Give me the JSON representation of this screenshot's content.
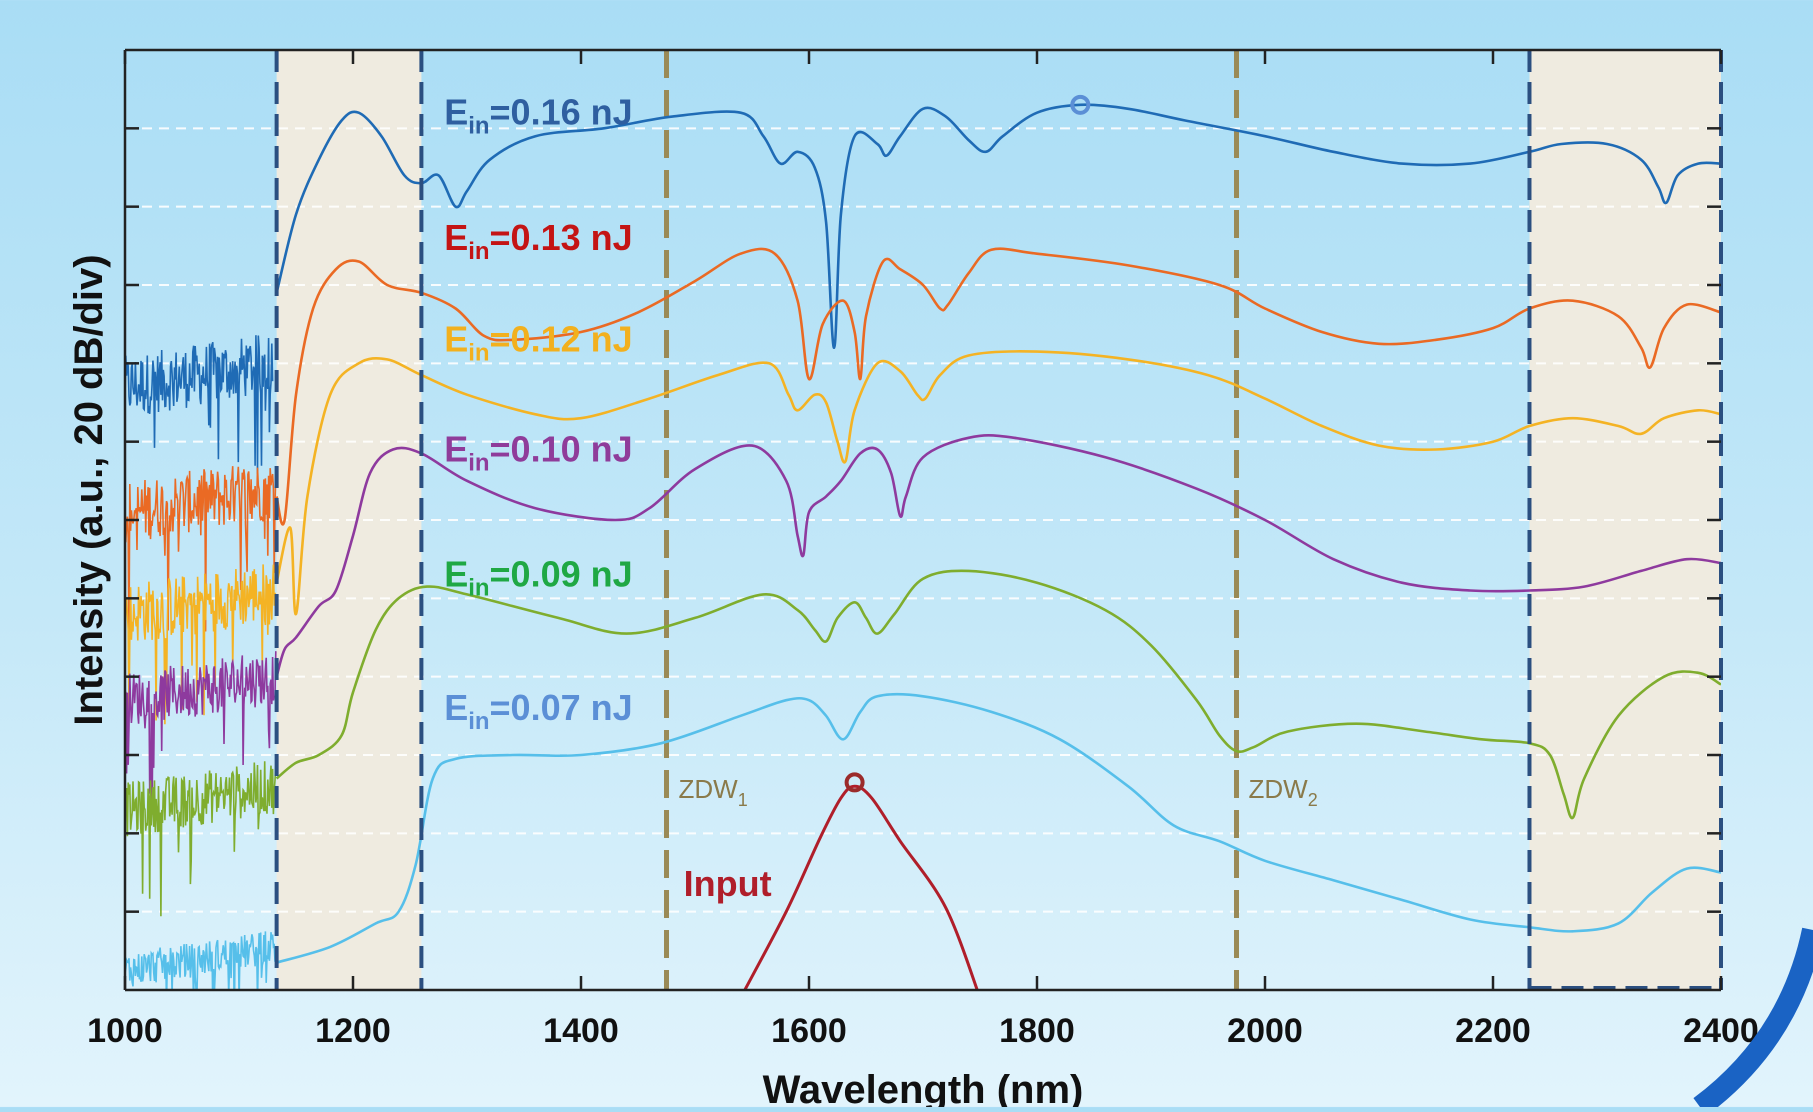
{
  "chart_data": {
    "type": "line",
    "xlabel": "Wavelength (nm)",
    "ylabel": "Intensity (a.u., 20 dB/div)",
    "xlim": [
      1000,
      2400
    ],
    "xticks": [
      1000,
      1200,
      1400,
      1600,
      1800,
      2000,
      2200,
      2400
    ],
    "ylim": [
      0,
      12
    ],
    "grid": true,
    "shaded_regions": [
      [
        1133,
        1260
      ],
      [
        2232,
        2400
      ]
    ],
    "vlines": [
      {
        "x": 1475,
        "label": "ZDW",
        "sub": "1",
        "color": "#9a8a56"
      },
      {
        "x": 1975,
        "label": "ZDW",
        "sub": "2",
        "color": "#9a8a56"
      }
    ],
    "series": [
      {
        "name": "E",
        "sub": "in",
        "suffix": "=0.16 nJ",
        "color": "#1f6bb5",
        "label_color": "#2f5fa0",
        "label_x": 1280,
        "label_y": 11.05,
        "noise": {
          "x0": 1000,
          "x1": 1130,
          "y": 7.7,
          "amp": 0.8
        },
        "marker": {
          "x": 1838,
          "y": 11.3,
          "color": "#5b8fd6"
        },
        "points": [
          [
            1133,
            8.9
          ],
          [
            1150,
            9.9
          ],
          [
            1170,
            10.6
          ],
          [
            1190,
            11.1
          ],
          [
            1205,
            11.2
          ],
          [
            1225,
            10.9
          ],
          [
            1245,
            10.4
          ],
          [
            1260,
            10.3
          ],
          [
            1275,
            10.4
          ],
          [
            1290,
            10.0
          ],
          [
            1300,
            10.2
          ],
          [
            1320,
            10.6
          ],
          [
            1360,
            10.9
          ],
          [
            1420,
            11.0
          ],
          [
            1480,
            11.15
          ],
          [
            1540,
            11.2
          ],
          [
            1560,
            10.9
          ],
          [
            1575,
            10.55
          ],
          [
            1590,
            10.7
          ],
          [
            1605,
            10.5
          ],
          [
            1615,
            9.8
          ],
          [
            1622,
            8.2
          ],
          [
            1628,
            9.9
          ],
          [
            1640,
            10.9
          ],
          [
            1660,
            10.8
          ],
          [
            1668,
            10.65
          ],
          [
            1680,
            10.9
          ],
          [
            1700,
            11.25
          ],
          [
            1720,
            11.15
          ],
          [
            1740,
            10.85
          ],
          [
            1755,
            10.7
          ],
          [
            1770,
            10.9
          ],
          [
            1800,
            11.2
          ],
          [
            1838,
            11.3
          ],
          [
            1880,
            11.25
          ],
          [
            1930,
            11.1
          ],
          [
            2000,
            10.9
          ],
          [
            2060,
            10.7
          ],
          [
            2120,
            10.55
          ],
          [
            2180,
            10.55
          ],
          [
            2232,
            10.7
          ],
          [
            2260,
            10.8
          ],
          [
            2300,
            10.8
          ],
          [
            2330,
            10.6
          ],
          [
            2345,
            10.25
          ],
          [
            2352,
            10.05
          ],
          [
            2362,
            10.4
          ],
          [
            2380,
            10.55
          ],
          [
            2400,
            10.55
          ]
        ]
      },
      {
        "name": "E",
        "sub": "in",
        "suffix": "=0.13 nJ",
        "color": "#ea6a24",
        "label_color": "#c41414",
        "label_x": 1280,
        "label_y": 9.45,
        "noise": {
          "x0": 1000,
          "x1": 1133,
          "y": 6.1,
          "amp": 0.8
        },
        "points": [
          [
            1133,
            6.3
          ],
          [
            1140,
            6.0
          ],
          [
            1150,
            7.6
          ],
          [
            1165,
            8.7
          ],
          [
            1185,
            9.2
          ],
          [
            1205,
            9.3
          ],
          [
            1230,
            9.0
          ],
          [
            1260,
            8.9
          ],
          [
            1290,
            8.7
          ],
          [
            1315,
            8.35
          ],
          [
            1340,
            8.3
          ],
          [
            1400,
            8.4
          ],
          [
            1450,
            8.65
          ],
          [
            1500,
            9.05
          ],
          [
            1540,
            9.4
          ],
          [
            1570,
            9.4
          ],
          [
            1590,
            8.8
          ],
          [
            1600,
            7.8
          ],
          [
            1612,
            8.5
          ],
          [
            1630,
            8.8
          ],
          [
            1640,
            8.4
          ],
          [
            1645,
            7.8
          ],
          [
            1650,
            8.6
          ],
          [
            1665,
            9.3
          ],
          [
            1680,
            9.2
          ],
          [
            1700,
            9.0
          ],
          [
            1715,
            8.7
          ],
          [
            1722,
            8.75
          ],
          [
            1740,
            9.15
          ],
          [
            1760,
            9.45
          ],
          [
            1800,
            9.4
          ],
          [
            1880,
            9.25
          ],
          [
            1960,
            9.0
          ],
          [
            2000,
            8.7
          ],
          [
            2050,
            8.4
          ],
          [
            2100,
            8.25
          ],
          [
            2150,
            8.3
          ],
          [
            2200,
            8.45
          ],
          [
            2232,
            8.7
          ],
          [
            2270,
            8.8
          ],
          [
            2310,
            8.6
          ],
          [
            2330,
            8.2
          ],
          [
            2338,
            7.95
          ],
          [
            2350,
            8.45
          ],
          [
            2370,
            8.75
          ],
          [
            2400,
            8.65
          ]
        ]
      },
      {
        "name": "E",
        "sub": "in",
        "suffix": "=0.12 nJ",
        "color": "#f4b324",
        "label_color": "#f2b01e",
        "label_x": 1280,
        "label_y": 8.15,
        "noise": {
          "x0": 1000,
          "x1": 1133,
          "y": 4.8,
          "amp": 0.8
        },
        "points": [
          [
            1133,
            5.2
          ],
          [
            1145,
            5.9
          ],
          [
            1150,
            4.8
          ],
          [
            1160,
            6.3
          ],
          [
            1180,
            7.6
          ],
          [
            1205,
            8.0
          ],
          [
            1230,
            8.05
          ],
          [
            1260,
            7.85
          ],
          [
            1300,
            7.6
          ],
          [
            1360,
            7.35
          ],
          [
            1400,
            7.3
          ],
          [
            1460,
            7.55
          ],
          [
            1520,
            7.85
          ],
          [
            1565,
            8.0
          ],
          [
            1582,
            7.6
          ],
          [
            1590,
            7.4
          ],
          [
            1605,
            7.6
          ],
          [
            1615,
            7.5
          ],
          [
            1625,
            7.0
          ],
          [
            1632,
            6.75
          ],
          [
            1640,
            7.4
          ],
          [
            1660,
            8.0
          ],
          [
            1680,
            7.9
          ],
          [
            1695,
            7.6
          ],
          [
            1702,
            7.55
          ],
          [
            1715,
            7.85
          ],
          [
            1740,
            8.1
          ],
          [
            1800,
            8.15
          ],
          [
            1880,
            8.05
          ],
          [
            1950,
            7.85
          ],
          [
            2000,
            7.55
          ],
          [
            2050,
            7.2
          ],
          [
            2100,
            6.95
          ],
          [
            2150,
            6.9
          ],
          [
            2200,
            7.0
          ],
          [
            2232,
            7.2
          ],
          [
            2270,
            7.3
          ],
          [
            2310,
            7.2
          ],
          [
            2330,
            7.1
          ],
          [
            2350,
            7.3
          ],
          [
            2380,
            7.4
          ],
          [
            2400,
            7.35
          ]
        ]
      },
      {
        "name": "E",
        "sub": "in",
        "suffix": "=0.10 nJ",
        "color": "#8e3a9e",
        "label_color": "#8f3c9a",
        "label_x": 1280,
        "label_y": 6.75,
        "noise": {
          "x0": 1000,
          "x1": 1133,
          "y": 3.7,
          "amp": 0.7
        },
        "points": [
          [
            1133,
            4.0
          ],
          [
            1140,
            4.35
          ],
          [
            1150,
            4.5
          ],
          [
            1170,
            4.9
          ],
          [
            1185,
            5.1
          ],
          [
            1200,
            5.8
          ],
          [
            1215,
            6.6
          ],
          [
            1235,
            6.9
          ],
          [
            1260,
            6.85
          ],
          [
            1300,
            6.5
          ],
          [
            1360,
            6.15
          ],
          [
            1430,
            6.0
          ],
          [
            1460,
            6.15
          ],
          [
            1500,
            6.65
          ],
          [
            1550,
            6.95
          ],
          [
            1580,
            6.5
          ],
          [
            1590,
            5.8
          ],
          [
            1595,
            5.55
          ],
          [
            1600,
            6.1
          ],
          [
            1615,
            6.3
          ],
          [
            1628,
            6.5
          ],
          [
            1645,
            6.85
          ],
          [
            1660,
            6.9
          ],
          [
            1672,
            6.6
          ],
          [
            1680,
            6.05
          ],
          [
            1685,
            6.3
          ],
          [
            1700,
            6.8
          ],
          [
            1740,
            7.05
          ],
          [
            1780,
            7.05
          ],
          [
            1860,
            6.8
          ],
          [
            1940,
            6.4
          ],
          [
            2000,
            6.0
          ],
          [
            2060,
            5.5
          ],
          [
            2120,
            5.2
          ],
          [
            2180,
            5.1
          ],
          [
            2232,
            5.1
          ],
          [
            2280,
            5.15
          ],
          [
            2330,
            5.35
          ],
          [
            2370,
            5.5
          ],
          [
            2400,
            5.45
          ]
        ]
      },
      {
        "name": "E",
        "sub": "in",
        "suffix": "=0.09 nJ",
        "color": "#7fad2e",
        "label_color": "#1fa844",
        "label_x": 1280,
        "label_y": 5.15,
        "noise": {
          "x0": 1000,
          "x1": 1133,
          "y": 2.3,
          "amp": 0.7
        },
        "points": [
          [
            1133,
            2.7
          ],
          [
            1150,
            2.9
          ],
          [
            1170,
            3.0
          ],
          [
            1190,
            3.25
          ],
          [
            1200,
            3.8
          ],
          [
            1220,
            4.6
          ],
          [
            1240,
            5.0
          ],
          [
            1265,
            5.15
          ],
          [
            1300,
            5.05
          ],
          [
            1380,
            4.75
          ],
          [
            1440,
            4.55
          ],
          [
            1500,
            4.75
          ],
          [
            1560,
            5.05
          ],
          [
            1590,
            4.85
          ],
          [
            1605,
            4.6
          ],
          [
            1615,
            4.45
          ],
          [
            1625,
            4.75
          ],
          [
            1640,
            4.95
          ],
          [
            1650,
            4.75
          ],
          [
            1660,
            4.55
          ],
          [
            1675,
            4.8
          ],
          [
            1700,
            5.25
          ],
          [
            1740,
            5.35
          ],
          [
            1800,
            5.2
          ],
          [
            1860,
            4.85
          ],
          [
            1900,
            4.4
          ],
          [
            1940,
            3.7
          ],
          [
            1960,
            3.25
          ],
          [
            1975,
            3.05
          ],
          [
            1990,
            3.1
          ],
          [
            2020,
            3.3
          ],
          [
            2080,
            3.4
          ],
          [
            2140,
            3.3
          ],
          [
            2190,
            3.2
          ],
          [
            2232,
            3.15
          ],
          [
            2250,
            3.0
          ],
          [
            2262,
            2.5
          ],
          [
            2270,
            2.2
          ],
          [
            2280,
            2.7
          ],
          [
            2310,
            3.5
          ],
          [
            2350,
            4.0
          ],
          [
            2380,
            4.05
          ],
          [
            2400,
            3.9
          ]
        ]
      },
      {
        "name": "E",
        "sub": "in",
        "suffix": "=0.07 nJ",
        "color": "#56bfea",
        "label_color": "#5b8fd6",
        "label_x": 1280,
        "label_y": 3.45,
        "noise": {
          "x0": 1000,
          "x1": 1133,
          "y": 0.25,
          "amp": 0.45
        },
        "points": [
          [
            1133,
            0.35
          ],
          [
            1180,
            0.55
          ],
          [
            1220,
            0.85
          ],
          [
            1240,
            1.0
          ],
          [
            1255,
            1.6
          ],
          [
            1270,
            2.7
          ],
          [
            1290,
            2.95
          ],
          [
            1340,
            3.0
          ],
          [
            1400,
            3.0
          ],
          [
            1470,
            3.15
          ],
          [
            1540,
            3.5
          ],
          [
            1580,
            3.7
          ],
          [
            1600,
            3.7
          ],
          [
            1615,
            3.5
          ],
          [
            1630,
            3.2
          ],
          [
            1645,
            3.55
          ],
          [
            1660,
            3.75
          ],
          [
            1700,
            3.75
          ],
          [
            1760,
            3.55
          ],
          [
            1820,
            3.2
          ],
          [
            1880,
            2.6
          ],
          [
            1920,
            2.1
          ],
          [
            1960,
            1.9
          ],
          [
            2000,
            1.65
          ],
          [
            2060,
            1.4
          ],
          [
            2120,
            1.15
          ],
          [
            2180,
            0.9
          ],
          [
            2232,
            0.8
          ],
          [
            2270,
            0.75
          ],
          [
            2310,
            0.85
          ],
          [
            2340,
            1.25
          ],
          [
            2370,
            1.55
          ],
          [
            2400,
            1.5
          ]
        ]
      },
      {
        "name": "Input",
        "color": "#b01e2a",
        "label_color": "#b01e2a",
        "label_x": 1490,
        "label_y": 1.2,
        "marker": {
          "x": 1640,
          "y": 2.65,
          "color": "#9b2b2b"
        },
        "points": [
          [
            1540,
            -0.1
          ],
          [
            1580,
            1.0
          ],
          [
            1610,
            1.95
          ],
          [
            1628,
            2.45
          ],
          [
            1640,
            2.6
          ],
          [
            1655,
            2.45
          ],
          [
            1680,
            1.9
          ],
          [
            1720,
            1.05
          ],
          [
            1750,
            -0.1
          ]
        ]
      }
    ]
  }
}
